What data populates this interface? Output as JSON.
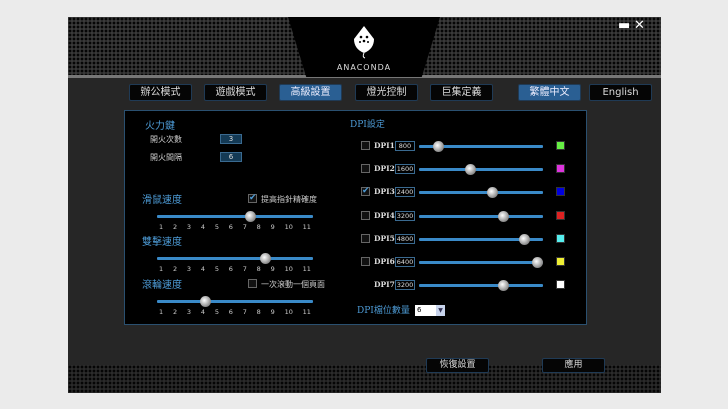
{
  "brand": "ANACONDA",
  "window_controls": {
    "minimize": "▬",
    "close": "✕"
  },
  "tabs": [
    {
      "label": "辦公模式",
      "active": false
    },
    {
      "label": "遊戲模式",
      "active": false
    },
    {
      "label": "高級設置",
      "active": true
    },
    {
      "label": "燈光控制",
      "active": false
    },
    {
      "label": "巨集定義",
      "active": false
    }
  ],
  "languages": [
    {
      "label": "繁體中文",
      "active": true
    },
    {
      "label": "English",
      "active": false
    }
  ],
  "fire_key": {
    "title": "火力鍵",
    "count_label": "開火次數",
    "count": "3",
    "interval_label": "開火間隔",
    "interval": "6"
  },
  "pointer_speed": {
    "title": "滑鼠速度",
    "value": 7,
    "checkbox_label": "提高指針精確度",
    "checked": true
  },
  "double_click": {
    "title": "雙擊速度",
    "value": 8
  },
  "wheel_speed": {
    "title": "滾輪速度",
    "value": 4,
    "checkbox_label": "一次滾動一個頁面",
    "checked": false
  },
  "ticks": [
    "1",
    "2",
    "3",
    "4",
    "5",
    "6",
    "7",
    "8",
    "9",
    "10",
    "11"
  ],
  "dpi": {
    "title": "DPI設定",
    "levels": [
      {
        "label": "DPI1",
        "value": "800",
        "checked": false,
        "slider": 0.15,
        "color": "#66ee44"
      },
      {
        "label": "DPI2",
        "value": "1600",
        "checked": false,
        "slider": 0.41,
        "color": "#dd33dd"
      },
      {
        "label": "DPI3",
        "value": "2400",
        "checked": true,
        "slider": 0.59,
        "color": "#0000dd"
      },
      {
        "label": "DPI4",
        "value": "3200",
        "checked": false,
        "slider": 0.68,
        "color": "#dd2222"
      },
      {
        "label": "DPI5",
        "value": "4800",
        "checked": false,
        "slider": 0.85,
        "color": "#55eeee"
      },
      {
        "label": "DPI6",
        "value": "6400",
        "checked": false,
        "slider": 0.95,
        "color": "#eeee33"
      },
      {
        "label": "DPI7",
        "value": "3200",
        "checked": null,
        "slider": 0.68,
        "color": "#ffffff"
      }
    ],
    "count_label": "DPI檔位數量",
    "count": "6"
  },
  "buttons": {
    "restore": "恢復設置",
    "apply": "應用"
  }
}
